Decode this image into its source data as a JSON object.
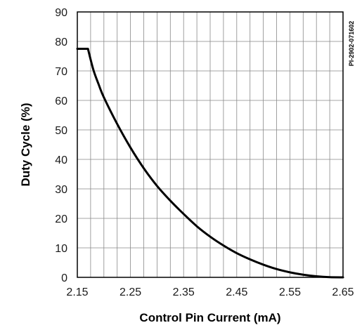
{
  "chart_data": {
    "type": "line",
    "title": "",
    "figure_id": "PI-2902-071602",
    "xlabel": "Control Pin Current (mA)",
    "ylabel": "Duty Cycle (%)",
    "xlim": [
      2.15,
      2.65
    ],
    "ylim": [
      0,
      90
    ],
    "x_ticks": [
      2.15,
      2.25,
      2.35,
      2.45,
      2.55,
      2.65
    ],
    "x_tick_labels": [
      "2.15",
      "2.25",
      "2.35",
      "2.45",
      "2.55",
      "2.65"
    ],
    "y_ticks": [
      0,
      10,
      20,
      30,
      40,
      50,
      60,
      70,
      80,
      90
    ],
    "y_tick_labels": [
      "0",
      "10",
      "20",
      "30",
      "40",
      "50",
      "60",
      "70",
      "80",
      "90"
    ],
    "x_minor_step": 0.025,
    "grid": true,
    "legend": false,
    "series": [
      {
        "color": "#000000",
        "x": [
          2.15,
          2.17,
          2.18,
          2.19,
          2.2,
          2.225,
          2.25,
          2.275,
          2.3,
          2.325,
          2.35,
          2.375,
          2.4,
          2.425,
          2.45,
          2.475,
          2.5,
          2.525,
          2.55,
          2.575,
          2.6,
          2.625,
          2.65
        ],
        "y": [
          77.5,
          77.5,
          70.5,
          65.5,
          61,
          52,
          44,
          37,
          31,
          26,
          21.5,
          17.3,
          13.8,
          10.8,
          8.2,
          6.1,
          4.3,
          2.8,
          1.7,
          0.9,
          0.35,
          0.05,
          0
        ]
      }
    ]
  },
  "colors": {
    "grid": "#888888",
    "axis": "#000000",
    "curve": "#000000",
    "text": "#1a1a1a"
  }
}
